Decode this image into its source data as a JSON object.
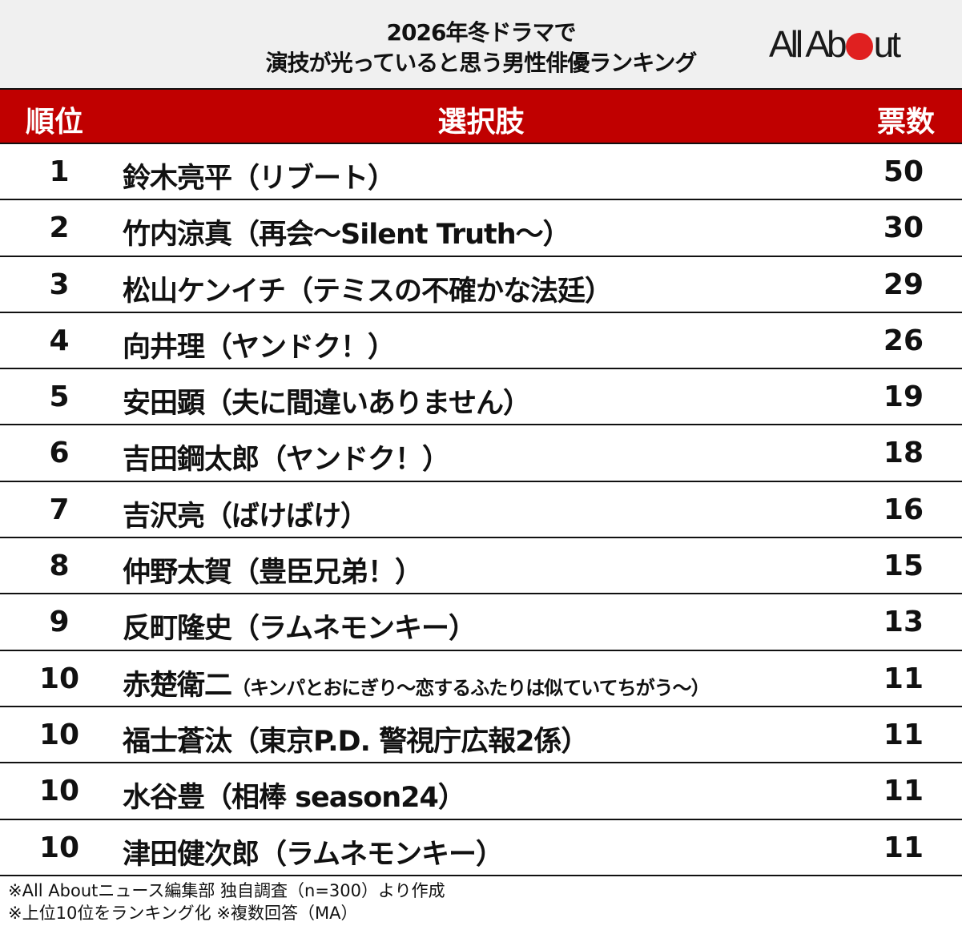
{
  "header": {
    "title_line1": "2026年冬ドラマで",
    "title_line2": "演技が光っていると思う男性俳優ランキング",
    "logo": {
      "text_left": "All Ab",
      "text_right": "ut",
      "dot_color": "#e02020"
    }
  },
  "table": {
    "columns": [
      "順位",
      "選択肢",
      "票数"
    ],
    "header_color": "#c00000",
    "rows": [
      {
        "rank": "1",
        "actor": "鈴木亮平",
        "show": "（リブート）",
        "votes": "50"
      },
      {
        "rank": "2",
        "actor": "竹内涼真",
        "show": "（再会〜Silent Truth〜）",
        "votes": "30"
      },
      {
        "rank": "3",
        "actor": "松山ケンイチ",
        "show": "（テミスの不確かな法廷）",
        "votes": "29"
      },
      {
        "rank": "4",
        "actor": "向井理",
        "show": "（ヤンドク！）",
        "votes": "26"
      },
      {
        "rank": "5",
        "actor": "安田顕",
        "show": "（夫に間違いありません）",
        "votes": "19"
      },
      {
        "rank": "6",
        "actor": "吉田鋼太郎",
        "show": "（ヤンドク！）",
        "votes": "18"
      },
      {
        "rank": "7",
        "actor": "吉沢亮",
        "show": "（ばけばけ）",
        "votes": "16"
      },
      {
        "rank": "8",
        "actor": "仲野太賀",
        "show": "（豊臣兄弟！）",
        "votes": "15"
      },
      {
        "rank": "9",
        "actor": "反町隆史",
        "show": "（ラムネモンキー）",
        "votes": "13"
      },
      {
        "rank": "10",
        "actor": "赤楚衛二",
        "show": "（キンパとおにぎり〜恋するふたりは似ていてちがう〜）",
        "votes": "11"
      },
      {
        "rank": "10",
        "actor": "福士蒼汰",
        "show": "（東京P.D. 警視庁広報2係）",
        "votes": "11"
      },
      {
        "rank": "10",
        "actor": "水谷豊",
        "show": "（相棒 season24）",
        "votes": "11"
      },
      {
        "rank": "10",
        "actor": "津田健次郎",
        "show": "（ラムネモンキー）",
        "votes": "11"
      }
    ]
  },
  "footer": {
    "note1": "※All Aboutニュース編集部 独自調査（n=300）より作成",
    "note2": "※上位10位をランキング化 ※複数回答（MA）"
  },
  "chart_data": {
    "type": "table",
    "title": "2026年冬ドラマで演技が光っていると思う男性俳優ランキング",
    "columns": [
      "順位",
      "選択肢",
      "票数"
    ],
    "categories": [
      "鈴木亮平（リブート）",
      "竹内涼真（再会〜Silent Truth〜）",
      "松山ケンイチ（テミスの不確かな法廷）",
      "向井理（ヤンドク！）",
      "安田顕（夫に間違いありません）",
      "吉田鋼太郎（ヤンドク！）",
      "吉沢亮（ばけばけ）",
      "仲野太賀（豊臣兄弟！）",
      "反町隆史（ラムネモンキー）",
      "赤楚衛二（キンパとおにぎり〜恋するふたりは似ていてちがう〜）",
      "福士蒼汰（東京P.D. 警視庁広報2係）",
      "水谷豊（相棒 season24）",
      "津田健次郎（ラムネモンキー）"
    ],
    "ranks": [
      1,
      2,
      3,
      4,
      5,
      6,
      7,
      8,
      9,
      10,
      10,
      10,
      10
    ],
    "values": [
      50,
      30,
      29,
      26,
      19,
      18,
      16,
      15,
      13,
      11,
      11,
      11,
      11
    ],
    "annotations": [
      "※All Aboutニュース編集部 独自調査（n=300）より作成",
      "※上位10位をランキング化 ※複数回答（MA）"
    ]
  }
}
